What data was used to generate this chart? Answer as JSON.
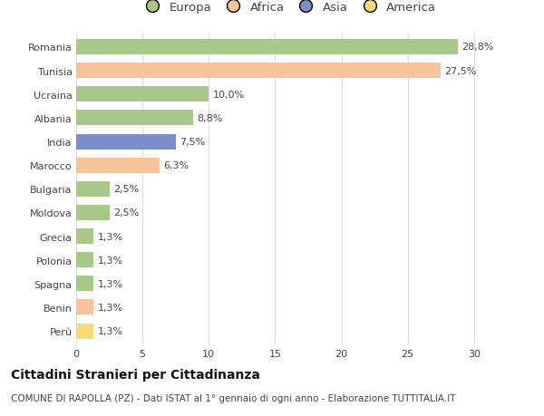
{
  "categories": [
    "Romania",
    "Tunisia",
    "Ucraina",
    "Albania",
    "India",
    "Marocco",
    "Bulgaria",
    "Moldova",
    "Grecia",
    "Polonia",
    "Spagna",
    "Benin",
    "Perù"
  ],
  "values": [
    28.8,
    27.5,
    10.0,
    8.8,
    7.5,
    6.3,
    2.5,
    2.5,
    1.3,
    1.3,
    1.3,
    1.3,
    1.3
  ],
  "labels": [
    "28,8%",
    "27,5%",
    "10,0%",
    "8,8%",
    "7,5%",
    "6,3%",
    "2,5%",
    "2,5%",
    "1,3%",
    "1,3%",
    "1,3%",
    "1,3%",
    "1,3%"
  ],
  "colors": [
    "#a8c88a",
    "#f5c49a",
    "#a8c88a",
    "#a8c88a",
    "#7b8ec8",
    "#f5c49a",
    "#a8c88a",
    "#a8c88a",
    "#a8c88a",
    "#a8c88a",
    "#a8c88a",
    "#f5c49a",
    "#f5d97a"
  ],
  "legend_labels": [
    "Europa",
    "Africa",
    "Asia",
    "America"
  ],
  "legend_colors": [
    "#a8c88a",
    "#f5c49a",
    "#7b8ec8",
    "#f5d97a"
  ],
  "xlim": [
    0,
    32
  ],
  "xticks": [
    0,
    5,
    10,
    15,
    20,
    25,
    30
  ],
  "title": "Cittadini Stranieri per Cittadinanza",
  "subtitle": "COMUNE DI RAPOLLA (PZ) - Dati ISTAT al 1° gennaio di ogni anno - Elaborazione TUTTITALIA.IT",
  "background_color": "#ffffff",
  "bar_height": 0.65,
  "title_fontsize": 10,
  "subtitle_fontsize": 7.5,
  "label_fontsize": 8,
  "tick_fontsize": 8,
  "legend_fontsize": 9.5
}
